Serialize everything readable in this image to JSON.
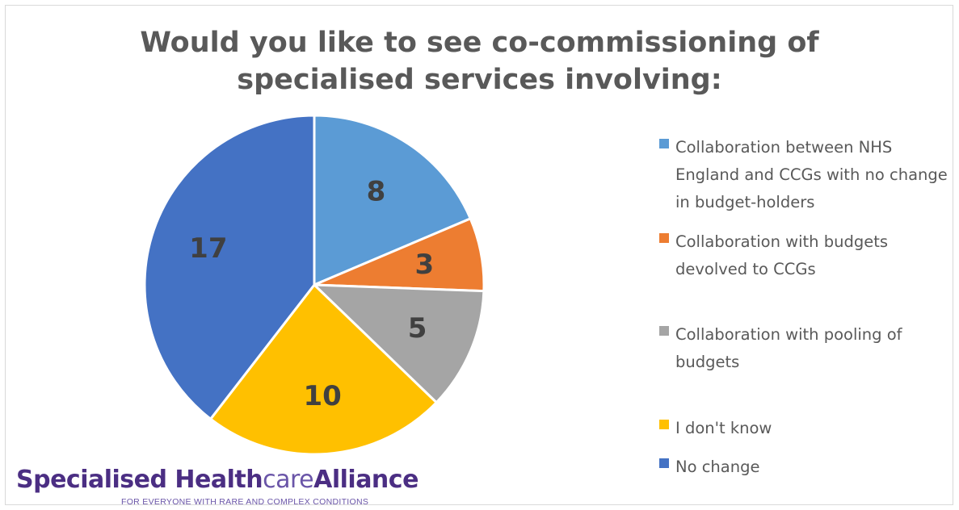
{
  "chart_data": {
    "type": "pie",
    "title_lines": [
      "Would you like to see co-commissioning of",
      "specialised services involving:"
    ],
    "slices": [
      {
        "label": "Collaboration between NHS England and CCGs with no change in budget-holders",
        "value": 8,
        "color": "#5b9bd5"
      },
      {
        "label": "Collaboration with budgets devolved to CCGs",
        "value": 3,
        "color": "#ed7d31"
      },
      {
        "label": "Collaboration with pooling of budgets",
        "value": 5,
        "color": "#a5a5a5"
      },
      {
        "label": "I don't know",
        "value": 10,
        "color": "#ffc000"
      },
      {
        "label": "No change",
        "value": 17,
        "color": "#4472c4"
      }
    ],
    "legend_position": "right"
  },
  "logo": {
    "part1": "Specialised Health",
    "part2": "care",
    "part3": "Alliance",
    "tagline": "FOR EVERYONE WITH RARE AND COMPLEX CONDITIONS"
  }
}
